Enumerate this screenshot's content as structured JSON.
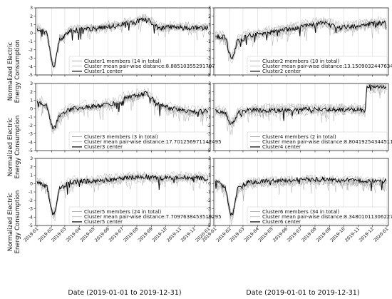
{
  "figure": {
    "ylabel_line1": "Normalized Electric",
    "ylabel_line2": "Energy Consumption",
    "xlabel": "Date (2019-01-01 to 2019-12-31)",
    "colors": {
      "members": "#9a9a9a",
      "mean": "#b5b5b5",
      "center": "#000000",
      "axes": "#222222",
      "grid": "#d0d0d0"
    }
  },
  "chart_data": [
    {
      "type": "line",
      "panel": "Cluster 1",
      "ylim": [
        -5,
        3
      ],
      "yticks": [
        -5,
        -4,
        -3,
        -2,
        -1,
        0,
        1,
        2,
        3
      ],
      "xlim": [
        "2019-01-01",
        "2020-01-01"
      ],
      "xticks": [
        "2019-01",
        "2019-02",
        "2019-03",
        "2019-04",
        "2019-05",
        "2019-06",
        "2019-07",
        "2019-08",
        "2019-09",
        "2019-10",
        "2019-11",
        "2019-12",
        "2020-01"
      ],
      "series": [
        {
          "name": "Cluster1 members (14 in total)",
          "profile": {
            "x": [
              "2019-01-01",
              "2019-01-20",
              "2019-02-05",
              "2019-02-20",
              "2019-03-15",
              "2019-05-01",
              "2019-06-15",
              "2019-07-15",
              "2019-08-20",
              "2019-09-20",
              "2019-10-20",
              "2019-12-01",
              "2020-01-01"
            ],
            "y": [
              0.5,
              0.0,
              -3.9,
              -0.6,
              0.3,
              0.5,
              0.8,
              1.2,
              1.6,
              0.6,
              0.7,
              0.6,
              0.6
            ]
          }
        },
        {
          "name": "Cluster mean pair-wise distance:8.88510355291707"
        },
        {
          "name": "Cluster1 center"
        }
      ],
      "legend": "center-right",
      "grid": true
    },
    {
      "type": "line",
      "panel": "Cluster 2",
      "ylim": [
        -5,
        3
      ],
      "yticks": [
        -5,
        -4,
        -3,
        -2,
        -1,
        0,
        1,
        2,
        3
      ],
      "xlim": [
        "2019-01-01",
        "2020-01-01"
      ],
      "xticks": [
        "2019-01",
        "2019-02",
        "2019-03",
        "2019-04",
        "2019-05",
        "2019-06",
        "2019-07",
        "2019-08",
        "2019-09",
        "2019-10",
        "2019-11",
        "2019-12",
        "2020-01"
      ],
      "series": [
        {
          "name": "Cluster2 members (10 in total)",
          "profile": {
            "x": [
              "2019-01-01",
              "2019-01-20",
              "2019-02-05",
              "2019-02-20",
              "2019-03-15",
              "2019-05-01",
              "2019-06-15",
              "2019-07-15",
              "2019-08-20",
              "2019-09-20",
              "2019-10-20",
              "2019-12-01",
              "2020-01-01"
            ],
            "y": [
              -0.4,
              -0.5,
              -2.9,
              -0.9,
              -0.3,
              0.1,
              0.5,
              0.9,
              1.2,
              0.6,
              0.8,
              1.1,
              1.2
            ]
          }
        },
        {
          "name": "Cluster mean pair-wise distance:13.150903244763462"
        },
        {
          "name": "Cluster2 center"
        }
      ],
      "legend": "lower-right",
      "grid": true
    },
    {
      "type": "line",
      "panel": "Cluster 3",
      "ylim": [
        -5,
        3
      ],
      "yticks": [
        -5,
        -4,
        -3,
        -2,
        -1,
        0,
        1,
        2,
        3
      ],
      "xlim": [
        "2019-01-01",
        "2020-01-01"
      ],
      "xticks": [
        "2019-01",
        "2019-02",
        "2019-03",
        "2019-04",
        "2019-05",
        "2019-06",
        "2019-07",
        "2019-08",
        "2019-09",
        "2019-10",
        "2019-11",
        "2019-12",
        "2020-01"
      ],
      "series": [
        {
          "name": "Cluster3 members (3 in total)",
          "profile": {
            "x": [
              "2019-01-01",
              "2019-01-20",
              "2019-02-05",
              "2019-02-20",
              "2019-03-15",
              "2019-05-01",
              "2019-06-15",
              "2019-07-15",
              "2019-08-20",
              "2019-09-20",
              "2019-10-20",
              "2019-12-01",
              "2020-01-01"
            ],
            "y": [
              0.9,
              0.4,
              -2.4,
              -0.7,
              0.0,
              0.3,
              0.6,
              1.4,
              1.8,
              0.4,
              0.0,
              -0.4,
              -0.2
            ]
          }
        },
        {
          "name": "Cluster mean pair-wise distance:17.701256971142495"
        },
        {
          "name": "Cluster3 center"
        }
      ],
      "legend": "lower-right",
      "grid": true
    },
    {
      "type": "line",
      "panel": "Cluster 4",
      "ylim": [
        -5,
        3
      ],
      "yticks": [
        -5,
        -4,
        -3,
        -2,
        -1,
        0,
        1,
        2,
        3
      ],
      "xlim": [
        "2019-01-01",
        "2020-01-01"
      ],
      "xticks": [
        "2019-01",
        "2019-02",
        "2019-03",
        "2019-04",
        "2019-05",
        "2019-06",
        "2019-07",
        "2019-08",
        "2019-09",
        "2019-10",
        "2019-11",
        "2019-12",
        "2020-01"
      ],
      "series": [
        {
          "name": "Cluster4 members (2 in total)",
          "profile": {
            "x": [
              "2019-01-01",
              "2019-01-20",
              "2019-02-05",
              "2019-02-20",
              "2019-03-15",
              "2019-05-01",
              "2019-06-15",
              "2019-07-15",
              "2019-08-20",
              "2019-09-20",
              "2019-10-20",
              "2019-11-15",
              "2019-11-20",
              "2019-12-20",
              "2020-01-01"
            ],
            "y": [
              -0.2,
              -0.4,
              -1.8,
              -0.5,
              -0.2,
              -0.2,
              -0.1,
              -0.1,
              -0.1,
              -0.1,
              -0.1,
              -0.2,
              2.6,
              2.7,
              2.6
            ]
          }
        },
        {
          "name": "Cluster mean pair-wise distance:8.804192543445117"
        },
        {
          "name": "Cluster4 center"
        }
      ],
      "legend": "lower-right",
      "grid": true
    },
    {
      "type": "line",
      "panel": "Cluster 5",
      "ylim": [
        -5,
        3
      ],
      "yticks": [
        -5,
        -4,
        -3,
        -2,
        -1,
        0,
        1,
        2,
        3
      ],
      "xlim": [
        "2019-01-01",
        "2020-01-01"
      ],
      "xticks": [
        "2019-01",
        "2019-02",
        "2019-03",
        "2019-04",
        "2019-05",
        "2019-06",
        "2019-07",
        "2019-08",
        "2019-09",
        "2019-10",
        "2019-11",
        "2019-12",
        "2020-01"
      ],
      "series": [
        {
          "name": "Cluster5 members (24 in total)",
          "profile": {
            "x": [
              "2019-01-01",
              "2019-01-20",
              "2019-02-05",
              "2019-02-20",
              "2019-03-15",
              "2019-05-01",
              "2019-06-15",
              "2019-07-15",
              "2019-08-20",
              "2019-09-20",
              "2019-10-20",
              "2019-12-01",
              "2020-01-01"
            ],
            "y": [
              0.2,
              -0.3,
              -3.7,
              -0.5,
              0.2,
              0.3,
              0.5,
              0.7,
              0.8,
              0.6,
              0.7,
              0.7,
              0.6
            ]
          }
        },
        {
          "name": "Cluster mean pair-wise distance:7.7097638453519295"
        },
        {
          "name": "Cluster5 center"
        }
      ],
      "legend": "lower-right",
      "grid": true
    },
    {
      "type": "line",
      "panel": "Cluster 6",
      "ylim": [
        -5,
        3
      ],
      "yticks": [
        -5,
        -4,
        -3,
        -2,
        -1,
        0,
        1,
        2,
        3
      ],
      "xlim": [
        "2019-01-01",
        "2020-01-01"
      ],
      "xticks": [
        "2019-01",
        "2019-02",
        "2019-03",
        "2019-04",
        "2019-05",
        "2019-06",
        "2019-07",
        "2019-08",
        "2019-09",
        "2019-10",
        "2019-11",
        "2019-12",
        "2020-01"
      ],
      "series": [
        {
          "name": "Cluster6 members (34 in total)",
          "profile": {
            "x": [
              "2019-01-01",
              "2019-01-20",
              "2019-02-05",
              "2019-02-20",
              "2019-03-15",
              "2019-05-01",
              "2019-06-15",
              "2019-07-15",
              "2019-08-20",
              "2019-09-20",
              "2019-10-20",
              "2019-12-01",
              "2020-01-01"
            ],
            "y": [
              0.3,
              -0.3,
              -3.8,
              -0.5,
              0.2,
              0.3,
              0.4,
              0.5,
              0.5,
              0.4,
              0.4,
              0.3,
              0.3
            ]
          }
        },
        {
          "name": "Cluster mean pair-wise distance:8.348010113062275"
        },
        {
          "name": "Cluster6 center"
        }
      ],
      "legend": "lower-right",
      "grid": true
    }
  ]
}
